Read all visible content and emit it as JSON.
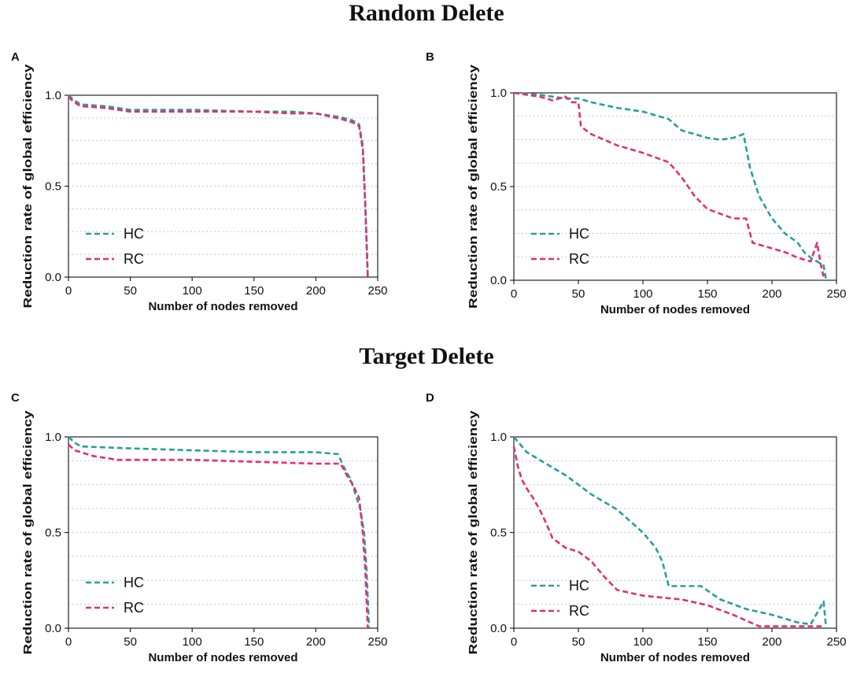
{
  "titles": {
    "random": "Random Delete",
    "target": "Target Delete"
  },
  "chart_data": [
    {
      "panel": "A",
      "type": "line",
      "group": "Random Delete",
      "xlabel": "Number of nodes removed",
      "ylabel": "Reduction rate of global efficiency",
      "xlim": [
        0,
        250
      ],
      "ylim": [
        0,
        1
      ],
      "xticks": [
        "0",
        "50",
        "100",
        "150",
        "200",
        "250"
      ],
      "yticks": [
        "0.0",
        "0.5",
        "1.0"
      ],
      "grid": "horizontal dotted",
      "legend_position": "lower-left",
      "series": [
        {
          "name": "HC",
          "color": "#2a9d9f",
          "x": [
            0,
            5,
            10,
            30,
            50,
            100,
            150,
            180,
            200,
            220,
            230,
            235,
            238,
            240,
            242
          ],
          "y": [
            1.0,
            0.97,
            0.95,
            0.94,
            0.92,
            0.92,
            0.91,
            0.91,
            0.9,
            0.88,
            0.86,
            0.84,
            0.72,
            0.4,
            0.0
          ]
        },
        {
          "name": "RC",
          "color": "#e0306f",
          "x": [
            0,
            5,
            10,
            30,
            50,
            100,
            150,
            180,
            200,
            220,
            230,
            235,
            238,
            240,
            242
          ],
          "y": [
            0.99,
            0.96,
            0.94,
            0.93,
            0.91,
            0.91,
            0.91,
            0.9,
            0.9,
            0.87,
            0.85,
            0.83,
            0.7,
            0.38,
            0.0
          ]
        }
      ]
    },
    {
      "panel": "B",
      "type": "line",
      "group": "Random Delete",
      "xlabel": "Number of nodes removed",
      "ylabel": "Reduction rate of global efficiency",
      "xlim": [
        0,
        250
      ],
      "ylim": [
        0,
        1
      ],
      "xticks": [
        "0",
        "50",
        "100",
        "150",
        "200",
        "250"
      ],
      "yticks": [
        "0.0",
        "0.5",
        "1.0"
      ],
      "grid": "horizontal dotted",
      "legend_position": "lower-left",
      "series": [
        {
          "name": "HC",
          "color": "#2a9d9f",
          "x": [
            0,
            20,
            40,
            50,
            60,
            80,
            100,
            120,
            130,
            150,
            160,
            170,
            178,
            183,
            190,
            200,
            210,
            220,
            225,
            230,
            235,
            240,
            242
          ],
          "y": [
            1.0,
            0.99,
            0.97,
            0.97,
            0.95,
            0.92,
            0.9,
            0.86,
            0.8,
            0.76,
            0.75,
            0.76,
            0.78,
            0.6,
            0.45,
            0.33,
            0.25,
            0.2,
            0.15,
            0.12,
            0.1,
            0.08,
            0.0
          ]
        },
        {
          "name": "RC",
          "color": "#e0306f",
          "x": [
            0,
            20,
            30,
            40,
            45,
            50,
            52,
            60,
            80,
            100,
            120,
            130,
            140,
            150,
            170,
            180,
            185,
            200,
            210,
            220,
            230,
            235,
            238,
            240
          ],
          "y": [
            1.0,
            0.98,
            0.96,
            0.98,
            0.95,
            0.95,
            0.82,
            0.78,
            0.72,
            0.68,
            0.63,
            0.55,
            0.45,
            0.38,
            0.33,
            0.33,
            0.2,
            0.17,
            0.15,
            0.12,
            0.1,
            0.2,
            0.08,
            0.02
          ]
        }
      ]
    },
    {
      "panel": "C",
      "type": "line",
      "group": "Target Delete",
      "xlabel": "Number of nodes removed",
      "ylabel": "Reduction rate of global efficiency",
      "xlim": [
        0,
        250
      ],
      "ylim": [
        0,
        1
      ],
      "xticks": [
        "0",
        "50",
        "100",
        "150",
        "200",
        "250"
      ],
      "yticks": [
        "0.0",
        "0.5",
        "1.0"
      ],
      "grid": "horizontal dotted",
      "legend_position": "lower-left",
      "series": [
        {
          "name": "HC",
          "color": "#2a9d9f",
          "x": [
            0,
            5,
            10,
            50,
            100,
            150,
            200,
            218,
            222,
            228,
            232,
            236,
            239,
            241,
            243
          ],
          "y": [
            1.0,
            0.97,
            0.95,
            0.94,
            0.93,
            0.92,
            0.92,
            0.91,
            0.85,
            0.78,
            0.7,
            0.62,
            0.5,
            0.3,
            0.0
          ]
        },
        {
          "name": "RC",
          "color": "#e0306f",
          "x": [
            0,
            5,
            20,
            40,
            60,
            100,
            150,
            200,
            220,
            225,
            230,
            235,
            238,
            240,
            242
          ],
          "y": [
            0.96,
            0.93,
            0.9,
            0.88,
            0.88,
            0.88,
            0.87,
            0.86,
            0.86,
            0.8,
            0.75,
            0.68,
            0.5,
            0.3,
            0.0
          ]
        }
      ]
    },
    {
      "panel": "D",
      "type": "line",
      "group": "Target Delete",
      "xlabel": "Number of nodes removed",
      "ylabel": "Reduction rate of global efficiency",
      "xlim": [
        0,
        250
      ],
      "ylim": [
        0,
        1
      ],
      "xticks": [
        "0",
        "50",
        "100",
        "150",
        "200",
        "250"
      ],
      "yticks": [
        "0.0",
        "0.5",
        "1.0"
      ],
      "grid": "horizontal dotted",
      "legend_position": "lower-left",
      "series": [
        {
          "name": "HC",
          "color": "#2a9d9f",
          "x": [
            0,
            10,
            20,
            40,
            60,
            80,
            100,
            110,
            115,
            120,
            130,
            145,
            160,
            180,
            200,
            220,
            230,
            240,
            242
          ],
          "y": [
            1.0,
            0.92,
            0.88,
            0.8,
            0.7,
            0.62,
            0.5,
            0.42,
            0.35,
            0.22,
            0.22,
            0.22,
            0.15,
            0.1,
            0.07,
            0.03,
            0.02,
            0.14,
            0.0
          ]
        },
        {
          "name": "RC",
          "color": "#e0306f",
          "x": [
            0,
            3,
            6,
            10,
            15,
            20,
            25,
            30,
            40,
            50,
            60,
            70,
            80,
            100,
            130,
            150,
            170,
            180,
            190,
            200,
            240
          ],
          "y": [
            0.95,
            0.85,
            0.78,
            0.73,
            0.68,
            0.62,
            0.55,
            0.47,
            0.42,
            0.4,
            0.35,
            0.27,
            0.2,
            0.17,
            0.15,
            0.12,
            0.07,
            0.04,
            0.01,
            0.01,
            0.01
          ]
        }
      ]
    }
  ]
}
